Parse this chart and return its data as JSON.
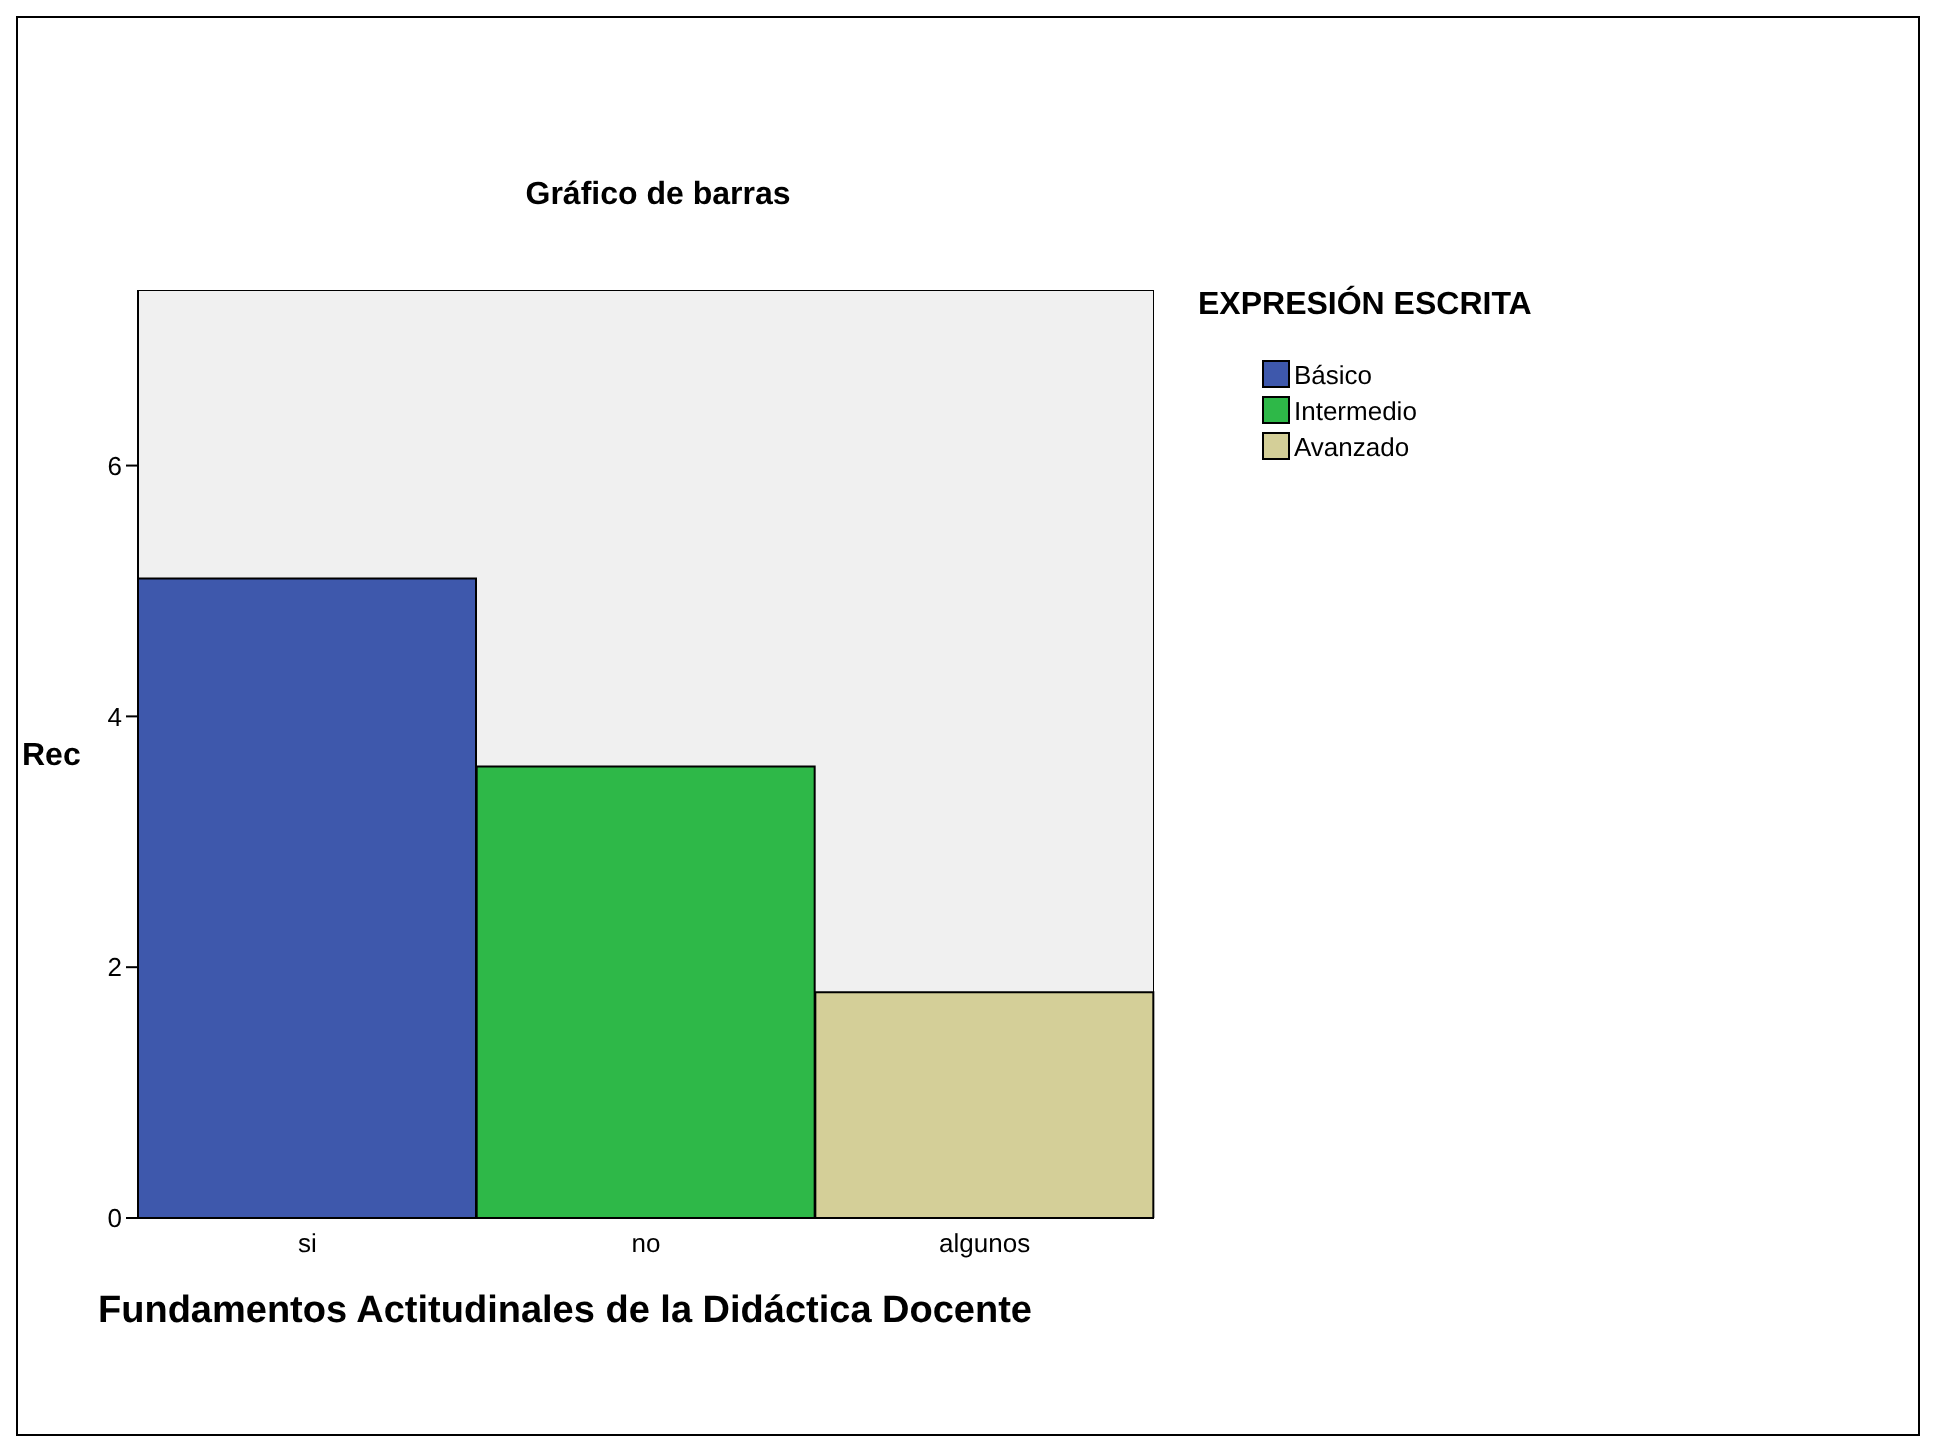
{
  "chart_data": {
    "type": "bar",
    "title": "Gráfico de barras",
    "xlabel": "Fundamentos Actitudinales de la Didáctica Docente",
    "ylabel": "Rec",
    "legend_title": "EXPRESIÓN ESCRITA",
    "categories": [
      "si",
      "no",
      "algunos"
    ],
    "stacked": true,
    "series": [
      {
        "name": "Básico",
        "color": "#3e58ac",
        "values": [
          5.1,
          null,
          null
        ]
      },
      {
        "name": "Intermedio",
        "color": "#2eb848",
        "values": [
          null,
          3.6,
          null
        ]
      },
      {
        "name": "Avanzado",
        "color": "#d4cf98",
        "values": [
          null,
          null,
          1.8
        ]
      }
    ],
    "ylim": [
      0,
      7.4
    ],
    "yticks": [
      0,
      2,
      4,
      6
    ],
    "legend": "top right"
  }
}
